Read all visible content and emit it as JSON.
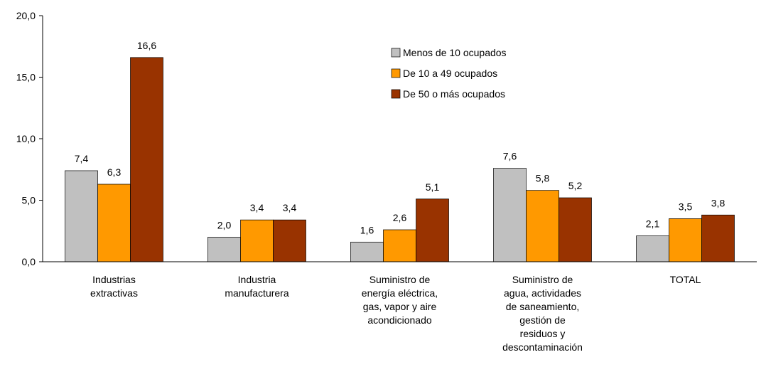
{
  "chart_data": {
    "type": "bar",
    "categories": [
      "Industrias\nextractivas",
      "Industria\nmanufacturera",
      "Suministro de\nenergía eléctrica,\ngas, vapor y aire\nacondicionado",
      "Suministro de\nagua, actividades\nde saneamiento,\ngestión de\nresiduos y\ndescontaminación",
      "TOTAL"
    ],
    "series": [
      {
        "name": "Menos de 10 ocupados",
        "color": "#c0c0c0",
        "values": [
          7.4,
          2.0,
          1.6,
          7.6,
          2.1
        ],
        "value_labels": [
          "7,4",
          "2,0",
          "1,6",
          "7,6",
          "2,1"
        ]
      },
      {
        "name": "De 10 a 49 ocupados",
        "color": "#ff9900",
        "values": [
          6.3,
          3.4,
          2.6,
          5.8,
          3.5
        ],
        "value_labels": [
          "6,3",
          "3,4",
          "2,6",
          "5,8",
          "3,5"
        ]
      },
      {
        "name": "De 50 o más ocupados",
        "color": "#993300",
        "values": [
          16.6,
          3.4,
          5.1,
          5.2,
          3.8
        ],
        "value_labels": [
          "16,6",
          "3,4",
          "5,1",
          "5,2",
          "3,8"
        ]
      }
    ],
    "ylim": [
      0,
      20
    ],
    "yticks": [
      {
        "value": 0,
        "label": "0,0"
      },
      {
        "value": 5,
        "label": "5,0"
      },
      {
        "value": 10,
        "label": "10,0"
      },
      {
        "value": 15,
        "label": "15,0"
      },
      {
        "value": 20,
        "label": "20,0"
      }
    ],
    "grid": false,
    "legend": "top"
  }
}
